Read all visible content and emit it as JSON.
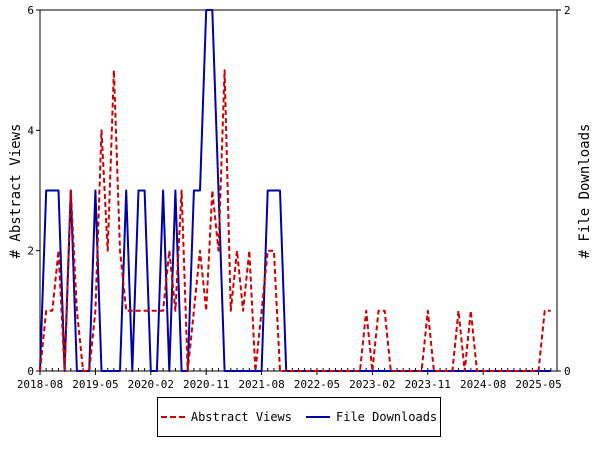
{
  "chart_data": {
    "type": "line",
    "title": "",
    "ylabel": "# Abstract Views",
    "y2label": "# File Downloads",
    "ylim": [
      0,
      6
    ],
    "y2lim": [
      0,
      2
    ],
    "yticks": [
      "0",
      "2",
      "4",
      "6"
    ],
    "y2ticks": [
      "0",
      "2"
    ],
    "xlim": [
      "2018-08",
      "2025-08"
    ],
    "xtick_labels": [
      "2018-08",
      "2019-05",
      "2020-02",
      "2020-11",
      "2021-08",
      "2022-05",
      "2023-02",
      "2023-11",
      "2024-08",
      "2025-05"
    ],
    "grid": false,
    "legend_placement": "bottom-center",
    "colors": {
      "views": "#cc0000",
      "downloads": "#0000aa"
    },
    "series": [
      {
        "name": "Abstract Views",
        "axis": "left",
        "x": [
          "2018-08",
          "2018-09",
          "2018-10",
          "2018-11",
          "2018-12",
          "2019-01",
          "2019-02",
          "2019-03",
          "2019-04",
          "2019-05",
          "2019-06",
          "2019-07",
          "2019-08",
          "2019-09",
          "2019-10",
          "2019-11",
          "2019-12",
          "2020-01",
          "2020-02",
          "2020-03",
          "2020-04",
          "2020-05",
          "2020-06",
          "2020-07",
          "2020-08",
          "2020-09",
          "2020-10",
          "2020-11",
          "2020-12",
          "2021-01",
          "2021-02",
          "2021-03",
          "2021-04",
          "2021-05",
          "2021-06",
          "2021-07",
          "2021-08",
          "2021-09",
          "2021-10",
          "2021-11",
          "2021-12",
          "2022-01",
          "2022-02",
          "2022-03",
          "2022-04",
          "2022-05",
          "2022-06",
          "2022-07",
          "2022-08",
          "2022-09",
          "2022-10",
          "2022-11",
          "2022-12",
          "2023-01",
          "2023-02",
          "2023-03",
          "2023-04",
          "2023-05",
          "2023-06",
          "2023-07",
          "2023-08",
          "2023-09",
          "2023-10",
          "2023-11",
          "2023-12",
          "2024-01",
          "2024-02",
          "2024-03",
          "2024-04",
          "2024-05",
          "2024-06",
          "2024-07",
          "2024-08",
          "2024-09",
          "2024-10",
          "2024-11",
          "2024-12",
          "2025-01",
          "2025-02",
          "2025-03",
          "2025-04",
          "2025-05",
          "2025-06",
          "2025-07"
        ],
        "values": [
          0,
          1,
          1,
          2,
          0,
          3,
          1,
          0,
          0,
          1,
          4,
          2,
          5,
          2,
          1,
          1,
          1,
          1,
          1,
          1,
          1,
          2,
          1,
          3,
          0,
          1,
          2,
          1,
          3,
          2,
          5,
          1,
          2,
          1,
          2,
          0,
          1,
          2,
          2,
          0,
          0,
          0,
          0,
          0,
          0,
          0,
          0,
          0,
          0,
          0,
          0,
          0,
          0,
          1,
          0,
          1,
          1,
          0,
          0,
          0,
          0,
          0,
          0,
          1,
          0,
          0,
          0,
          0,
          1,
          0,
          1,
          0,
          0,
          0,
          0,
          0,
          0,
          0,
          0,
          0,
          0,
          0,
          1,
          1
        ]
      },
      {
        "name": "File Downloads",
        "axis": "right",
        "x": [
          "2018-08",
          "2018-09",
          "2018-10",
          "2018-11",
          "2018-12",
          "2019-01",
          "2019-02",
          "2019-03",
          "2019-04",
          "2019-05",
          "2019-06",
          "2019-07",
          "2019-08",
          "2019-09",
          "2019-10",
          "2019-11",
          "2019-12",
          "2020-01",
          "2020-02",
          "2020-03",
          "2020-04",
          "2020-05",
          "2020-06",
          "2020-07",
          "2020-08",
          "2020-09",
          "2020-10",
          "2020-11",
          "2020-12",
          "2021-01",
          "2021-02",
          "2021-03",
          "2021-04",
          "2021-05",
          "2021-06",
          "2021-07",
          "2021-08",
          "2021-09",
          "2021-10",
          "2021-11",
          "2021-12",
          "2022-01",
          "2022-02",
          "2022-03",
          "2022-04",
          "2022-05",
          "2022-06",
          "2022-07",
          "2022-08",
          "2022-09",
          "2022-10",
          "2022-11",
          "2022-12",
          "2023-01",
          "2023-02",
          "2023-03",
          "2023-04",
          "2023-05",
          "2023-06",
          "2023-07",
          "2023-08",
          "2023-09",
          "2023-10",
          "2023-11",
          "2023-12",
          "2024-01",
          "2024-02",
          "2024-03",
          "2024-04",
          "2024-05",
          "2024-06",
          "2024-07",
          "2024-08",
          "2024-09",
          "2024-10",
          "2024-11",
          "2024-12",
          "2025-01",
          "2025-02",
          "2025-03",
          "2025-04",
          "2025-05",
          "2025-06",
          "2025-07"
        ],
        "values": [
          0,
          1,
          1,
          1,
          0,
          1,
          0,
          0,
          0,
          1,
          0,
          0,
          0,
          0,
          1,
          0,
          1,
          1,
          0,
          0,
          1,
          0,
          1,
          0,
          0,
          1,
          1,
          2,
          2,
          1,
          0,
          0,
          0,
          0,
          0,
          0,
          0,
          1,
          1,
          1,
          0,
          0,
          0,
          0,
          0,
          0,
          0,
          0,
          0,
          0,
          0,
          0,
          0,
          0,
          0,
          0,
          0,
          0,
          0,
          0,
          0,
          0,
          0,
          0,
          0,
          0,
          0,
          0,
          0,
          0,
          0,
          0,
          0,
          0,
          0,
          0,
          0,
          0,
          0,
          0,
          0,
          0,
          0,
          0
        ]
      }
    ]
  },
  "legend": {
    "views_label": "Abstract Views",
    "downloads_label": "File Downloads"
  }
}
